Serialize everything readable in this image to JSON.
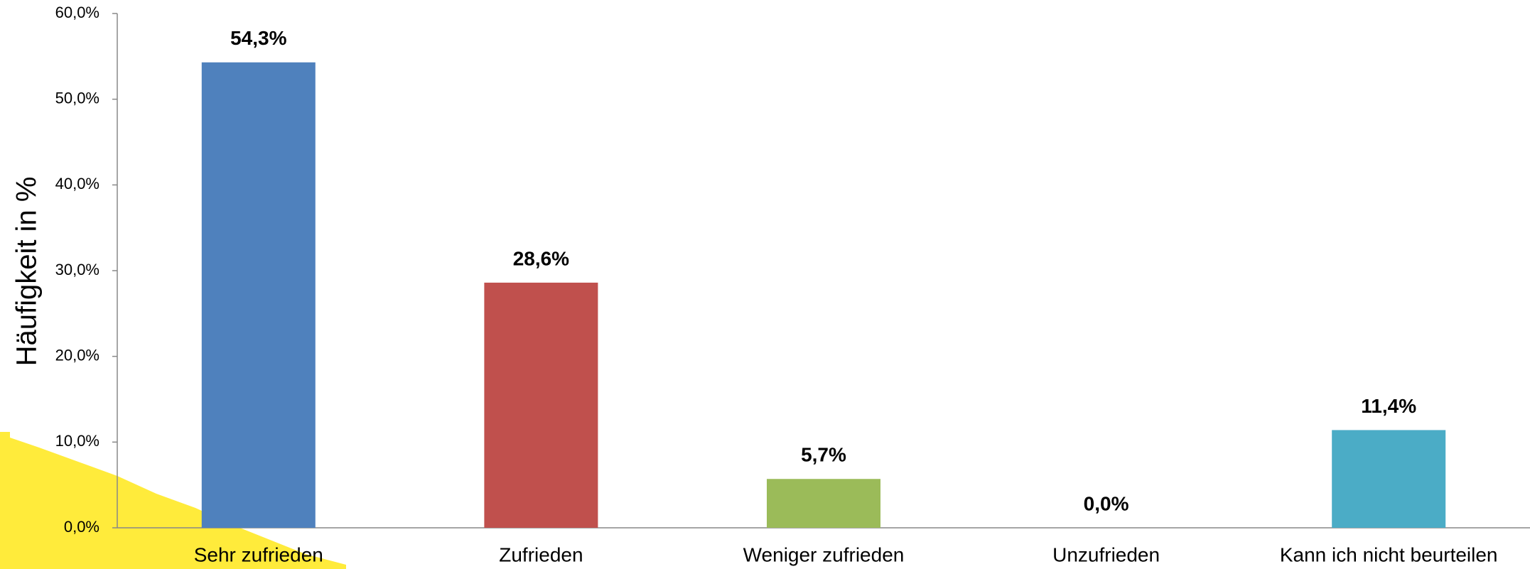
{
  "chart_data": {
    "type": "bar",
    "y_axis_label": "Häufigkeit in %",
    "categories": [
      "Sehr zufrieden",
      "Zufrieden",
      "Weniger zufrieden",
      "Unzufrieden",
      "Kann ich nicht beurteilen"
    ],
    "values": [
      54.3,
      28.6,
      5.7,
      0.0,
      11.4
    ],
    "value_labels": [
      "54,3%",
      "28,6%",
      "5,7%",
      "0,0%",
      "11,4%"
    ],
    "colors": [
      "#4f81bd",
      "#c0504d",
      "#9bbb59",
      "#8064a2",
      "#4bacc6"
    ],
    "ylim": [
      0,
      60
    ],
    "yticks": [
      {
        "value": 0,
        "label": "0,0%"
      },
      {
        "value": 10,
        "label": "10,0%"
      },
      {
        "value": 20,
        "label": "20,0%"
      },
      {
        "value": 30,
        "label": "30,0%"
      },
      {
        "value": 40,
        "label": "40,0%"
      },
      {
        "value": 50,
        "label": "50,0%"
      },
      {
        "value": 60,
        "label": "60,0%"
      }
    ],
    "grid": false
  }
}
